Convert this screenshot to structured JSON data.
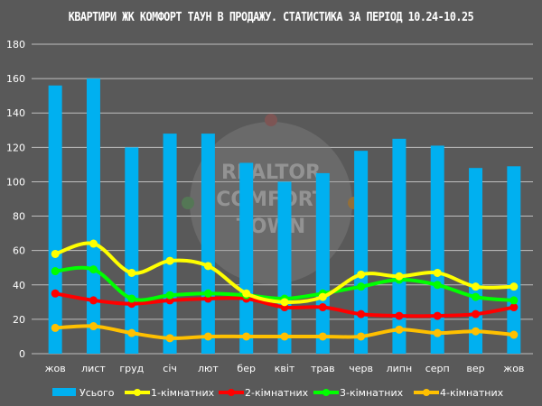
{
  "chart_data": {
    "type": "bar",
    "title": "КВАРТИРИ ЖК КОМФОРТ ТАУН В ПРОДАЖУ. СТАТИСТИКА ЗА ПЕРІОД 10.24-10.25",
    "categories": [
      "жов",
      "лист",
      "груд",
      "січ",
      "лют",
      "бер",
      "квіт",
      "трав",
      "черв",
      "липн",
      "серп",
      "вер",
      "жов"
    ],
    "ylim": [
      0,
      180
    ],
    "yticks": [
      0,
      20,
      40,
      60,
      80,
      100,
      120,
      140,
      160,
      180
    ],
    "grid": true,
    "legend": "bottom",
    "watermark": "REALTOR COMFORT TOWN",
    "series": [
      {
        "name": "Усього",
        "kind": "bar",
        "color": "#00b0f0",
        "values": [
          156,
          160,
          120,
          128,
          128,
          111,
          100,
          105,
          118,
          125,
          121,
          108,
          109
        ]
      },
      {
        "name": "1-кімнатних",
        "kind": "line",
        "color": "#ffff00",
        "values": [
          58,
          64,
          47,
          54,
          51,
          35,
          30,
          33,
          46,
          45,
          47,
          39,
          39
        ]
      },
      {
        "name": "2-кімнатних",
        "kind": "line",
        "color": "#ff0000",
        "values": [
          35,
          31,
          29,
          31,
          32,
          32,
          27,
          27,
          23,
          22,
          22,
          23,
          27
        ]
      },
      {
        "name": "3-кімнатних",
        "kind": "line",
        "color": "#00ff00",
        "values": [
          48,
          49,
          32,
          34,
          35,
          34,
          32,
          35,
          39,
          43,
          40,
          33,
          31
        ]
      },
      {
        "name": "4-кімнатних",
        "kind": "line",
        "color": "#ffc000",
        "values": [
          15,
          16,
          12,
          9,
          10,
          10,
          10,
          10,
          10,
          14,
          12,
          13,
          11
        ]
      }
    ]
  }
}
